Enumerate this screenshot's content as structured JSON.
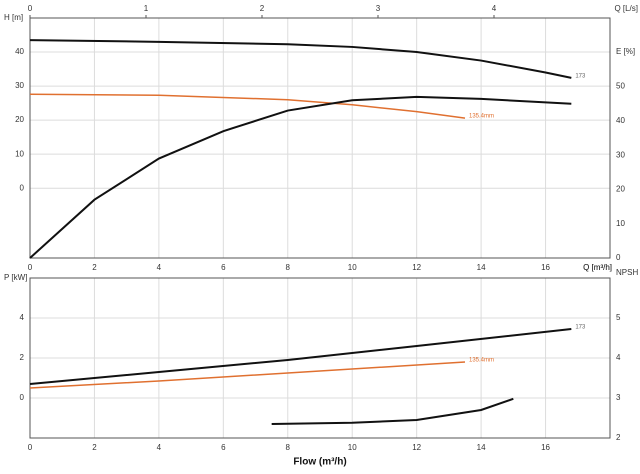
{
  "chart_data": [
    {
      "type": "line",
      "xlabel": "Q [m³/h]",
      "x2label": "Q [L/s]",
      "ylabel": "H [m]",
      "y2label": "E [%]",
      "xlim": [
        0,
        18
      ],
      "xticks": [
        0,
        2,
        4,
        6,
        8,
        10,
        12,
        14,
        16
      ],
      "x2lim": [
        0,
        5
      ],
      "x2ticks": [
        0,
        1,
        2,
        3,
        4
      ],
      "ylim": [
        -20.5,
        50
      ],
      "yticks": [
        0,
        10,
        20,
        30,
        40
      ],
      "y2lim": [
        0,
        70
      ],
      "y2ticks": [
        0,
        10,
        20,
        30,
        40,
        50
      ],
      "grid": true,
      "series": [
        {
          "name": "173",
          "color": "#111111",
          "x": [
            0,
            4,
            8,
            10,
            12,
            14,
            16,
            16.8
          ],
          "values": [
            43.5,
            43,
            42.3,
            41.5,
            40,
            37.5,
            34,
            32.4
          ]
        },
        {
          "name": "135.4mm",
          "color": "#e07030",
          "x": [
            0,
            4,
            8,
            10,
            12,
            13.5
          ],
          "values": [
            27.6,
            27.3,
            26,
            24.5,
            22.5,
            20.6
          ]
        },
        {
          "color": "#111111",
          "axis": "y2",
          "x": [
            0,
            2,
            4,
            6,
            8,
            10,
            12,
            14,
            16.8
          ],
          "values": [
            0,
            17,
            29,
            37,
            43,
            46,
            47,
            46.4,
            45
          ]
        }
      ]
    },
    {
      "type": "line",
      "xlabel": "Flow (m³/h)",
      "x2label": "Q [m³/h]",
      "ylabel": "P [kW]",
      "y2label": "NPSH",
      "xlim": [
        0,
        18
      ],
      "xticks": [
        0,
        2,
        4,
        6,
        8,
        10,
        12,
        14,
        16
      ],
      "ylim": [
        -2,
        6
      ],
      "yticks": [
        0,
        2,
        4
      ],
      "y2lim": [
        2,
        6
      ],
      "y2ticks": [
        2,
        3,
        4,
        5
      ],
      "grid": true,
      "series": [
        {
          "name": "173",
          "color": "#111111",
          "x": [
            0,
            4,
            8,
            12,
            16.8
          ],
          "values": [
            0.7,
            1.3,
            1.9,
            2.6,
            3.45
          ]
        },
        {
          "name": "135.4mm",
          "color": "#e07030",
          "x": [
            0,
            4,
            8,
            13.5
          ],
          "values": [
            0.5,
            0.85,
            1.25,
            1.8
          ]
        },
        {
          "color": "#111111",
          "axis": "y2",
          "x": [
            7.5,
            10,
            12,
            14,
            15
          ],
          "values": [
            2.35,
            2.38,
            2.45,
            2.7,
            2.98
          ]
        }
      ]
    }
  ]
}
